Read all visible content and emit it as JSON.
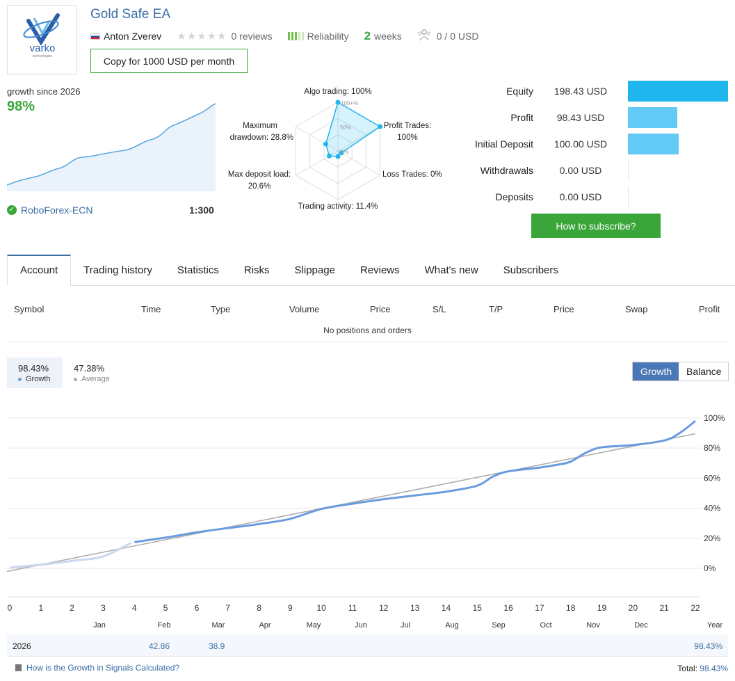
{
  "header": {
    "logo_text": "varko",
    "logo_subtext": "technologies",
    "title": "Gold Safe EA",
    "author": "Anton Zverev",
    "reviews": "0 reviews",
    "reliability": "Reliability",
    "weeks_num": "2",
    "weeks_label": "weeks",
    "subscribers": "0 / 0 USD",
    "copy_button": "Copy for 1000 USD per month"
  },
  "growth": {
    "label": "growth since 2026",
    "value": "98%",
    "broker": "RoboForex-ECN",
    "leverage": "1:300"
  },
  "radar": {
    "labels": {
      "algo": "Algo trading: 100%",
      "profit_1": "Profit Trades:",
      "profit_2": "100%",
      "loss": "Loss Trades: 0%",
      "activity": "Trading activity: 11.4%",
      "load_1": "Max deposit load:",
      "load_2": "20.6%",
      "dd_1": "Maximum",
      "dd_2": "drawdown: 28.8%",
      "scale_100": "100+%",
      "scale_50": "50%",
      "scale_0": "0%"
    },
    "values": [
      100,
      100,
      0,
      11.4,
      20.6,
      28.8
    ]
  },
  "equity": {
    "rows": [
      {
        "label": "Equity",
        "value": "198.43 USD",
        "amount": 198.43
      },
      {
        "label": "Profit",
        "value": "98.43 USD",
        "amount": 98.43
      },
      {
        "label": "Initial Deposit",
        "value": "100.00 USD",
        "amount": 100.0
      },
      {
        "label": "Withdrawals",
        "value": "0.00 USD",
        "amount": 0
      },
      {
        "label": "Deposits",
        "value": "0.00 USD",
        "amount": 0
      }
    ],
    "colors": {
      "equity": "#1eb6ed",
      "other": "#62caf5"
    },
    "subscribe_button": "How to subscribe?"
  },
  "tabs": [
    "Account",
    "Trading history",
    "Statistics",
    "Risks",
    "Slippage",
    "Reviews",
    "What's new",
    "Subscribers"
  ],
  "positions": {
    "columns": [
      "Symbol",
      "Time",
      "Type",
      "Volume",
      "Price",
      "S/L",
      "T/P",
      "Price",
      "Swap",
      "Profit"
    ],
    "empty_text": "No positions and orders"
  },
  "stats": {
    "growth_value": "98.43%",
    "growth_label": "Growth",
    "average_value": "47.38%",
    "average_label": "Average",
    "toggle_growth": "Growth",
    "toggle_balance": "Balance"
  },
  "chart_data": {
    "type": "line",
    "x_ticks": [
      "0",
      "1",
      "2",
      "3",
      "4",
      "5",
      "6",
      "7",
      "8",
      "9",
      "10",
      "11",
      "12",
      "13",
      "14",
      "15",
      "16",
      "17",
      "18",
      "19",
      "20",
      "21",
      "22"
    ],
    "month_labels": [
      "Jan",
      "Feb",
      "Mar",
      "Apr",
      "May",
      "Jun",
      "Jul",
      "Aug",
      "Sep",
      "Oct",
      "Nov",
      "Dec",
      "Year"
    ],
    "y_ticks": [
      "100%",
      "80%",
      "60%",
      "40%",
      "20%",
      "0%"
    ],
    "ylim": [
      -5,
      105
    ],
    "xlim": [
      0,
      22
    ],
    "series": [
      {
        "name": "Growth",
        "x": [
          0,
          1,
          2,
          3,
          3.9,
          4,
          5,
          6,
          7,
          8,
          9,
          10,
          11,
          12,
          13,
          14,
          15,
          15.5,
          16,
          17,
          17.6,
          18,
          18.5,
          19,
          20,
          21,
          21.5,
          22
        ],
        "y": [
          0.5,
          2.5,
          5,
          8,
          17,
          17.5,
          20.5,
          24,
          26.8,
          29.5,
          33,
          39.5,
          43,
          46,
          48.5,
          51,
          55,
          61,
          64.5,
          67,
          69,
          71,
          77,
          80.5,
          82,
          85,
          90,
          98
        ]
      },
      {
        "name": "Average",
        "x": [
          0,
          22
        ],
        "y": [
          -2,
          89.5
        ]
      }
    ],
    "colors": {
      "growth": "#6a9bdf",
      "growth_faded": "#c9d7ee",
      "average": "#aaaaaa"
    }
  },
  "yearly": {
    "year": "2026",
    "feb": "42.86",
    "mar": "38.9",
    "total": "98.43%"
  },
  "footer": {
    "link": "How is the Growth in Signals Calculated?",
    "total_label": "Total:",
    "total_value": "98.43%"
  }
}
